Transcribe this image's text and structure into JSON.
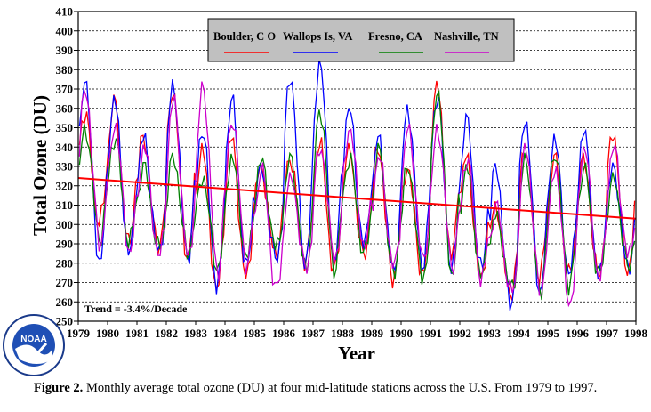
{
  "chart_data": {
    "type": "line",
    "ylabel": "Total Ozone (DU)",
    "xlabel": "Year",
    "ylim": [
      250,
      410
    ],
    "yticks": [
      250,
      260,
      270,
      280,
      290,
      300,
      310,
      320,
      330,
      340,
      350,
      360,
      370,
      380,
      390,
      400,
      410
    ],
    "xlim": [
      1979,
      1998
    ],
    "xticks": [
      1979,
      1980,
      1981,
      1982,
      1983,
      1984,
      1985,
      1986,
      1987,
      1988,
      1989,
      1990,
      1991,
      1992,
      1993,
      1994,
      1995,
      1996,
      1997,
      1998
    ],
    "grid": "horizontal dashed",
    "legend_position": "top",
    "annotation": "Trend = -3.4%/Decade",
    "trend": {
      "x": [
        1979,
        1998
      ],
      "y": [
        324,
        303
      ],
      "color": "#ff0000"
    },
    "series": [
      {
        "name": "Boulder, C O",
        "color": "#ff0000",
        "peaks": [
          358,
          365,
          345,
          370,
          340,
          345,
          330,
          335,
          343,
          340,
          340,
          330,
          373,
          335,
          310,
          340,
          335,
          335,
          348
        ],
        "troughs": [
          298,
          285,
          285,
          278,
          262,
          268,
          282,
          278,
          272,
          280,
          268,
          272,
          278,
          268,
          262,
          270,
          270,
          270,
          272
        ]
      },
      {
        "name": "Wallops Is, VA",
        "color": "#0000ff",
        "peaks": [
          376,
          365,
          345,
          373,
          350,
          365,
          330,
          377,
          385,
          360,
          345,
          360,
          367,
          355,
          330,
          355,
          345,
          348,
          330
        ],
        "troughs": [
          275,
          280,
          282,
          278,
          265,
          272,
          280,
          275,
          275,
          285,
          272,
          275,
          272,
          272,
          255,
          260,
          270,
          268,
          275
        ]
      },
      {
        "name": "Fresno, CA",
        "color": "#008000",
        "peaks": [
          350,
          345,
          330,
          335,
          325,
          335,
          333,
          335,
          360,
          335,
          340,
          330,
          370,
          330,
          305,
          335,
          338,
          330,
          325
        ],
        "troughs": [
          290,
          288,
          285,
          282,
          275,
          280,
          285,
          275,
          272,
          282,
          270,
          270,
          268,
          270,
          265,
          262,
          265,
          270,
          275
        ]
      },
      {
        "name": "Nashville, TN",
        "color": "#cc00cc",
        "peaks": [
          370,
          352,
          340,
          365,
          372,
          355,
          330,
          325,
          340,
          350,
          335,
          350,
          350,
          335,
          310,
          340,
          330,
          340,
          340
        ],
        "troughs": [
          285,
          282,
          280,
          278,
          270,
          275,
          262,
          275,
          280,
          285,
          275,
          278,
          275,
          268,
          262,
          260,
          255,
          268,
          280
        ]
      }
    ]
  },
  "logo_text": "NOAA",
  "caption": {
    "label": "Figure 2.",
    "text": " Monthly average total ozone (DU) at four mid-latitude stations across the U.S. From 1979 to 1997."
  }
}
